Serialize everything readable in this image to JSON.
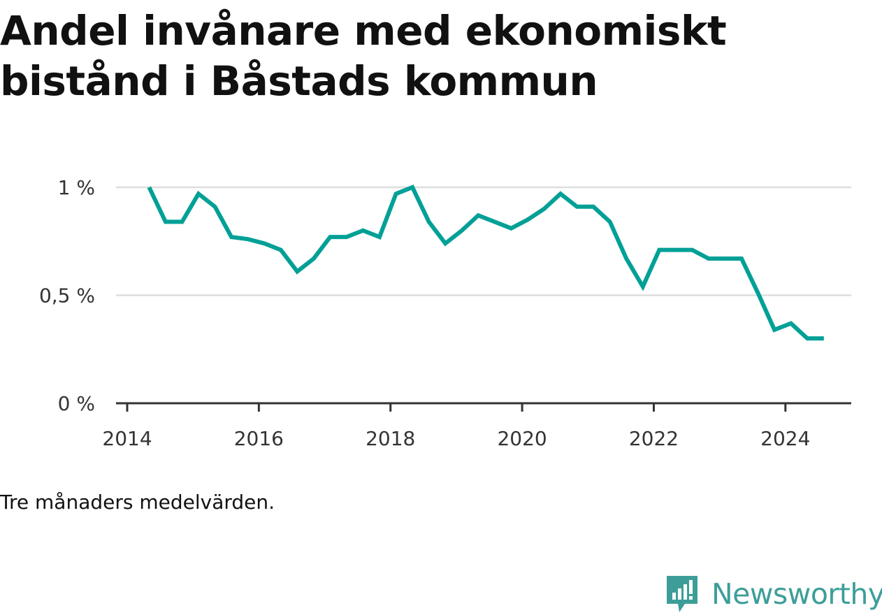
{
  "title": "Andel invånare med ekonomiskt bistånd i Båstads kommun",
  "note": "Tre månaders medelvärden.",
  "brand": {
    "name": "Newsworthy",
    "icon": "newsworthy-logo-icon",
    "color": "#3d9e98"
  },
  "chart_data": {
    "type": "line",
    "title": "Andel invånare med ekonomiskt bistånd i Båstads kommun",
    "xlabel": "",
    "ylabel": "",
    "x_ticks": [
      2014,
      2016,
      2018,
      2020,
      2022,
      2024
    ],
    "x_tick_labels": [
      "2014",
      "2016",
      "2018",
      "2020",
      "2022",
      "2024"
    ],
    "y_ticks": [
      0,
      0.5,
      1
    ],
    "y_tick_labels": [
      "0 %",
      "0,5 %",
      "1 %"
    ],
    "xlim": [
      2013.83,
      2025.0
    ],
    "ylim": [
      0,
      1.0
    ],
    "grid": true,
    "line_color": "#00a096",
    "series": [
      {
        "x": [
          "2014-05",
          "2014-08",
          "2014-11",
          "2015-02",
          "2015-05",
          "2015-08",
          "2015-11",
          "2016-02",
          "2016-05",
          "2016-08",
          "2016-11",
          "2017-02",
          "2017-05",
          "2017-08",
          "2017-11",
          "2018-02",
          "2018-05",
          "2018-08",
          "2018-11",
          "2019-02",
          "2019-05",
          "2019-08",
          "2019-11",
          "2020-02",
          "2020-05",
          "2020-08",
          "2020-11",
          "2021-02",
          "2021-05",
          "2021-08",
          "2021-11",
          "2022-02",
          "2022-05",
          "2022-08",
          "2022-11",
          "2023-02",
          "2023-05",
          "2023-08",
          "2023-11",
          "2024-02",
          "2024-05",
          "2024-08"
        ],
        "values": [
          1.0,
          0.84,
          0.84,
          0.97,
          0.91,
          0.77,
          0.76,
          0.74,
          0.71,
          0.61,
          0.67,
          0.77,
          0.77,
          0.8,
          0.77,
          0.97,
          1.0,
          0.84,
          0.74,
          0.8,
          0.87,
          0.84,
          0.81,
          0.85,
          0.9,
          0.97,
          0.91,
          0.91,
          0.84,
          0.67,
          0.54,
          0.71,
          0.71,
          0.71,
          0.67,
          0.67,
          0.67,
          0.51,
          0.34,
          0.37,
          0.3,
          0.3
        ]
      }
    ]
  }
}
